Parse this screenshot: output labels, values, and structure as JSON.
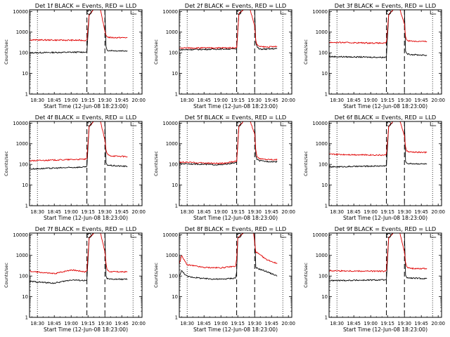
{
  "figure": {
    "background": "#ffffff",
    "colors": {
      "events": "#000000",
      "lld": "#e00000",
      "axis": "#000000"
    }
  },
  "chart_data": [
    {
      "type": "line",
      "title": "Det 1f BLACK = Events, RED = LLD",
      "xlabel": "Start Time (12-Jun-08 18:23:00)",
      "ylabel": "Counts/sec",
      "yscale": "log",
      "ylim": [
        1,
        12000
      ],
      "xlim": [
        "18:23",
        "20:03"
      ],
      "x_ticks": [
        "18:30",
        "18:45",
        "19:00",
        "19:15",
        "19:30",
        "19:45",
        "20:00"
      ],
      "y_ticks": [
        "1",
        "10",
        "100",
        "1000",
        "10000"
      ],
      "dotted_lines": [
        "18:30",
        "19:55"
      ],
      "dashed_lines": [
        "19:14",
        "19:30"
      ],
      "series": [
        {
          "name": "Events",
          "color": "#000000",
          "x": [
            "18:23",
            "19:13",
            "19:14",
            "19:16",
            "19:20",
            "19:22",
            "19:26",
            "19:30",
            "19:31",
            "19:32",
            "19:34",
            "19:40",
            "19:50"
          ],
          "y": [
            100,
            108,
            110,
            7000,
            12000,
            12000,
            12000,
            12000,
            200,
            130,
            130,
            125,
            125
          ]
        },
        {
          "name": "LLD",
          "color": "#e00000",
          "x": [
            "18:23",
            "19:13",
            "19:14",
            "19:16",
            "19:20",
            "19:22",
            "19:26",
            "19:30",
            "19:31",
            "19:32",
            "19:34",
            "19:40",
            "19:50"
          ],
          "y": [
            420,
            400,
            430,
            7000,
            12000,
            12000,
            12000,
            1100,
            700,
            600,
            550,
            540,
            540
          ]
        }
      ]
    },
    {
      "type": "line",
      "title": "Det 2f BLACK = Events, RED = LLD",
      "xlabel": "Start Time (12-Jun-08 18:23:00)",
      "ylabel": "Counts/sec",
      "yscale": "log",
      "ylim": [
        1,
        12000
      ],
      "xlim": [
        "18:23",
        "20:03"
      ],
      "x_ticks": [
        "18:30",
        "18:45",
        "19:00",
        "19:15",
        "19:30",
        "19:45",
        "20:00"
      ],
      "y_ticks": [
        "1",
        "10",
        "100",
        "1000",
        "10000"
      ],
      "dotted_lines": [
        "18:30",
        "19:55"
      ],
      "dashed_lines": [
        "19:14",
        "19:30"
      ],
      "series": [
        {
          "name": "Events",
          "color": "#000000",
          "x": [
            "18:23",
            "19:13",
            "19:14",
            "19:16",
            "19:20",
            "19:22",
            "19:26",
            "19:30",
            "19:31",
            "19:32",
            "19:34",
            "19:40",
            "19:50"
          ],
          "y": [
            140,
            155,
            150,
            8000,
            12000,
            12000,
            12000,
            12000,
            300,
            200,
            150,
            150,
            160
          ]
        },
        {
          "name": "LLD",
          "color": "#e00000",
          "x": [
            "18:23",
            "19:13",
            "19:14",
            "19:16",
            "19:20",
            "19:22",
            "19:26",
            "19:30",
            "19:31",
            "19:32",
            "19:34",
            "19:40",
            "19:50"
          ],
          "y": [
            170,
            175,
            190,
            8000,
            12000,
            12000,
            12000,
            2000,
            400,
            250,
            200,
            190,
            200
          ]
        }
      ]
    },
    {
      "type": "line",
      "title": "Det 3f BLACK = Events, RED = LLD",
      "xlabel": "Start Time (12-Jun-08 18:23:00)",
      "ylabel": "Counts/sec",
      "yscale": "log",
      "ylim": [
        1,
        12000
      ],
      "xlim": [
        "18:23",
        "20:03"
      ],
      "x_ticks": [
        "18:30",
        "18:45",
        "19:00",
        "19:15",
        "19:30",
        "19:45",
        "20:00"
      ],
      "y_ticks": [
        "1",
        "10",
        "100",
        "1000",
        "10000"
      ],
      "dotted_lines": [
        "18:30",
        "19:55"
      ],
      "dashed_lines": [
        "19:14",
        "19:30"
      ],
      "series": [
        {
          "name": "Events",
          "color": "#000000",
          "x": [
            "18:23",
            "19:13",
            "19:14",
            "19:16",
            "19:20",
            "19:22",
            "19:26",
            "19:30",
            "19:31",
            "19:32",
            "19:34",
            "19:40",
            "19:50"
          ],
          "y": [
            65,
            60,
            70,
            7000,
            12000,
            12000,
            12000,
            12000,
            120,
            90,
            85,
            80,
            75
          ]
        },
        {
          "name": "LLD",
          "color": "#e00000",
          "x": [
            "18:23",
            "19:13",
            "19:14",
            "19:16",
            "19:20",
            "19:22",
            "19:26",
            "19:30",
            "19:31",
            "19:32",
            "19:34",
            "19:40",
            "19:50"
          ],
          "y": [
            320,
            290,
            330,
            7000,
            12000,
            12000,
            12000,
            2500,
            600,
            420,
            380,
            360,
            350
          ]
        }
      ]
    },
    {
      "type": "line",
      "title": "Det 4f BLACK = Events, RED = LLD",
      "xlabel": "Start Time (12-Jun-08 18:23:00)",
      "ylabel": "Counts/sec",
      "yscale": "log",
      "ylim": [
        1,
        12000
      ],
      "xlim": [
        "18:23",
        "20:03"
      ],
      "x_ticks": [
        "18:30",
        "18:45",
        "19:00",
        "19:15",
        "19:30",
        "19:45",
        "20:00"
      ],
      "y_ticks": [
        "1",
        "10",
        "100",
        "1000",
        "10000"
      ],
      "dotted_lines": [
        "18:30",
        "19:55"
      ],
      "dashed_lines": [
        "19:14",
        "19:30"
      ],
      "series": [
        {
          "name": "Events",
          "color": "#000000",
          "x": [
            "18:23",
            "19:13",
            "19:14",
            "19:16",
            "19:20",
            "19:22",
            "19:26",
            "19:30",
            "19:31",
            "19:32",
            "19:34",
            "19:40",
            "19:50"
          ],
          "y": [
            60,
            75,
            80,
            7000,
            12000,
            12000,
            12000,
            12000,
            120,
            95,
            90,
            85,
            80
          ]
        },
        {
          "name": "LLD",
          "color": "#e00000",
          "x": [
            "18:23",
            "19:13",
            "19:14",
            "19:16",
            "19:20",
            "19:22",
            "19:26",
            "19:30",
            "19:31",
            "19:32",
            "19:34",
            "19:40",
            "19:50"
          ],
          "y": [
            150,
            180,
            200,
            7000,
            12000,
            12000,
            12000,
            1500,
            500,
            320,
            270,
            250,
            240
          ]
        }
      ]
    },
    {
      "type": "line",
      "title": "Det 5f BLACK = Events, RED = LLD",
      "xlabel": "Start Time (12-Jun-08 18:23:00)",
      "ylabel": "Counts/sec",
      "yscale": "log",
      "ylim": [
        1,
        12000
      ],
      "xlim": [
        "18:23",
        "20:03"
      ],
      "x_ticks": [
        "18:30",
        "18:45",
        "19:00",
        "19:15",
        "19:30",
        "19:45",
        "20:00"
      ],
      "y_ticks": [
        "1",
        "10",
        "100",
        "1000",
        "10000"
      ],
      "dotted_lines": [
        "18:30",
        "19:55"
      ],
      "dashed_lines": [
        "19:14",
        "19:30"
      ],
      "series": [
        {
          "name": "Events",
          "color": "#000000",
          "x": [
            "18:23",
            "19:00",
            "19:13",
            "19:14",
            "19:16",
            "19:20",
            "19:22",
            "19:26",
            "19:30",
            "19:31",
            "19:32",
            "19:34",
            "19:40",
            "19:50"
          ],
          "y": [
            110,
            95,
            120,
            130,
            7000,
            12000,
            12000,
            12000,
            12000,
            260,
            180,
            150,
            140,
            135
          ]
        },
        {
          "name": "LLD",
          "color": "#e00000",
          "x": [
            "18:23",
            "19:00",
            "19:13",
            "19:14",
            "19:16",
            "19:20",
            "19:22",
            "19:26",
            "19:30",
            "19:31",
            "19:32",
            "19:34",
            "19:40",
            "19:50"
          ],
          "y": [
            130,
            110,
            140,
            150,
            7000,
            12000,
            12000,
            12000,
            3000,
            500,
            250,
            190,
            175,
            170
          ]
        }
      ]
    },
    {
      "type": "line",
      "title": "Det 6f BLACK = Events, RED = LLD",
      "xlabel": "Start Time (12-Jun-08 18:23:00)",
      "ylabel": "Counts/sec",
      "yscale": "log",
      "ylim": [
        1,
        12000
      ],
      "xlim": [
        "18:23",
        "20:03"
      ],
      "x_ticks": [
        "18:30",
        "18:45",
        "19:00",
        "19:15",
        "19:30",
        "19:45",
        "20:00"
      ],
      "y_ticks": [
        "1",
        "10",
        "100",
        "1000",
        "10000"
      ],
      "dotted_lines": [
        "18:30",
        "19:55"
      ],
      "dashed_lines": [
        "19:14",
        "19:30"
      ],
      "series": [
        {
          "name": "Events",
          "color": "#000000",
          "x": [
            "18:23",
            "19:13",
            "19:14",
            "19:16",
            "19:20",
            "19:22",
            "19:26",
            "19:30",
            "19:31",
            "19:32",
            "19:34",
            "19:40",
            "19:50"
          ],
          "y": [
            75,
            85,
            90,
            7000,
            12000,
            12000,
            12000,
            12000,
            140,
            115,
            110,
            108,
            105
          ]
        },
        {
          "name": "LLD",
          "color": "#e00000",
          "x": [
            "18:23",
            "19:13",
            "19:14",
            "19:16",
            "19:20",
            "19:22",
            "19:26",
            "19:30",
            "19:31",
            "19:32",
            "19:34",
            "19:40",
            "19:50"
          ],
          "y": [
            310,
            280,
            330,
            7000,
            12000,
            12000,
            12000,
            2500,
            700,
            450,
            400,
            390,
            380
          ]
        }
      ]
    },
    {
      "type": "line",
      "title": "Det 7f BLACK = Events, RED = LLD",
      "xlabel": "Start Time (12-Jun-08 18:23:00)",
      "ylabel": "Counts/sec",
      "yscale": "log",
      "ylim": [
        1,
        12000
      ],
      "xlim": [
        "18:23",
        "20:03"
      ],
      "x_ticks": [
        "18:30",
        "18:45",
        "19:00",
        "19:15",
        "19:30",
        "19:45",
        "20:00"
      ],
      "y_ticks": [
        "1",
        "10",
        "100",
        "1000",
        "10000"
      ],
      "dotted_lines": [
        "18:30",
        "19:55"
      ],
      "dashed_lines": [
        "19:14",
        "19:30"
      ],
      "series": [
        {
          "name": "Events",
          "color": "#000000",
          "x": [
            "18:23",
            "18:45",
            "19:00",
            "19:13",
            "19:14",
            "19:16",
            "19:20",
            "19:22",
            "19:26",
            "19:30",
            "19:31",
            "19:32",
            "19:34",
            "19:40",
            "19:50"
          ],
          "y": [
            55,
            45,
            65,
            60,
            65,
            7000,
            12000,
            12000,
            12000,
            12000,
            100,
            75,
            70,
            70,
            70
          ]
        },
        {
          "name": "LLD",
          "color": "#e00000",
          "x": [
            "18:23",
            "18:45",
            "19:00",
            "19:13",
            "19:14",
            "19:16",
            "19:20",
            "19:22",
            "19:26",
            "19:30",
            "19:31",
            "19:32",
            "19:34",
            "19:40",
            "19:50"
          ],
          "y": [
            170,
            130,
            200,
            160,
            190,
            7000,
            12000,
            12000,
            12000,
            1500,
            400,
            200,
            165,
            160,
            160
          ]
        }
      ]
    },
    {
      "type": "line",
      "title": "Det 8f BLACK = Events, RED = LLD",
      "xlabel": "Start Time (12-Jun-08 18:23:00)",
      "ylabel": "Counts/sec",
      "yscale": "log",
      "ylim": [
        1,
        12000
      ],
      "xlim": [
        "18:23",
        "20:03"
      ],
      "x_ticks": [
        "18:30",
        "18:45",
        "19:00",
        "19:15",
        "19:30",
        "19:45",
        "20:00"
      ],
      "y_ticks": [
        "1",
        "10",
        "100",
        "1000",
        "10000"
      ],
      "dotted_lines": [
        "18:30",
        "19:55"
      ],
      "dashed_lines": [
        "19:14",
        "19:30"
      ],
      "series": [
        {
          "name": "Events",
          "color": "#000000",
          "x": [
            "18:23",
            "18:25",
            "18:30",
            "18:45",
            "19:00",
            "19:13",
            "19:14",
            "19:15",
            "19:20",
            "19:22",
            "19:26",
            "19:30",
            "19:31",
            "19:40",
            "19:50"
          ],
          "y": [
            100,
            180,
            95,
            75,
            70,
            80,
            160,
            7000,
            12000,
            12000,
            12000,
            12000,
            250,
            170,
            100
          ]
        },
        {
          "name": "LLD",
          "color": "#e00000",
          "x": [
            "18:23",
            "18:25",
            "18:30",
            "18:45",
            "19:00",
            "19:13",
            "19:14",
            "19:15",
            "19:20",
            "19:22",
            "19:26",
            "19:29",
            "19:31",
            "19:40",
            "19:50"
          ],
          "y": [
            400,
            950,
            350,
            260,
            250,
            300,
            700,
            7000,
            12000,
            12000,
            12000,
            12000,
            1500,
            650,
            400
          ]
        }
      ]
    },
    {
      "type": "line",
      "title": "Det 9f BLACK = Events, RED = LLD",
      "xlabel": "Start Time (12-Jun-08 18:23:00)",
      "ylabel": "Counts/sec",
      "yscale": "log",
      "ylim": [
        1,
        12000
      ],
      "xlim": [
        "18:23",
        "20:03"
      ],
      "x_ticks": [
        "18:30",
        "18:45",
        "19:00",
        "19:15",
        "19:30",
        "19:45",
        "20:00"
      ],
      "y_ticks": [
        "1",
        "10",
        "100",
        "1000",
        "10000"
      ],
      "dotted_lines": [
        "18:30",
        "19:55"
      ],
      "dashed_lines": [
        "19:14",
        "19:30"
      ],
      "series": [
        {
          "name": "Events",
          "color": "#000000",
          "x": [
            "18:23",
            "19:13",
            "19:14",
            "19:16",
            "19:20",
            "19:22",
            "19:26",
            "19:30",
            "19:31",
            "19:32",
            "19:34",
            "19:40",
            "19:50"
          ],
          "y": [
            60,
            65,
            70,
            7000,
            12000,
            12000,
            12000,
            12000,
            110,
            85,
            80,
            78,
            75
          ]
        },
        {
          "name": "LLD",
          "color": "#e00000",
          "x": [
            "18:23",
            "19:13",
            "19:14",
            "19:16",
            "19:20",
            "19:22",
            "19:26",
            "19:30",
            "19:31",
            "19:32",
            "19:34",
            "19:40",
            "19:50"
          ],
          "y": [
            180,
            170,
            200,
            7000,
            12000,
            12000,
            12000,
            1500,
            450,
            280,
            240,
            230,
            230
          ]
        }
      ]
    }
  ]
}
